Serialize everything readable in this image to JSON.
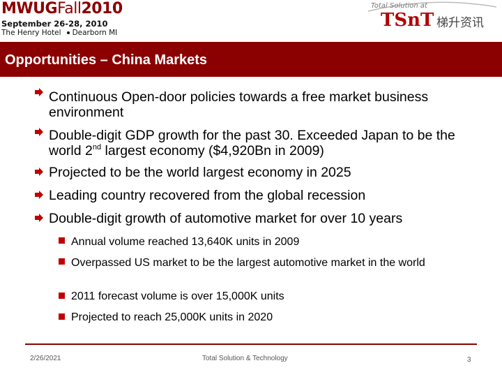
{
  "header": {
    "logo_bold": "MWUG",
    "logo_light": "Fall",
    "logo_year": "2010",
    "dates": "September 26-28, 2010",
    "venue_hotel": "The Henry Hotel",
    "venue_city": "Dearborn  MI",
    "brand_tagline": "Total Solution at",
    "brand_name": "TSnT",
    "brand_cn": "梯升资讯"
  },
  "slide": {
    "title": "Opportunities – China Markets",
    "bullets": [
      {
        "text": "Continuous Open-door policies towards a free market business environment"
      },
      {
        "text_pre": "Double-digit GDP growth for the past 30. Exceeded Japan to be the world 2",
        "sup": "nd",
        "text_post": " largest economy ($4,920Bn in 2009)"
      },
      {
        "text": "Projected to be the world largest  economy in 2025"
      },
      {
        "text": "Leading country recovered from the global recession"
      },
      {
        "text": "Double-digit growth of automotive market for over 10 years"
      }
    ],
    "sub_bullets": [
      {
        "text": "Annual volume reached 13,640K units in 2009"
      },
      {
        "text": "Overpassed US market to be the largest automotive market in the world"
      },
      {
        "text": "2011 forecast volume is over 15,000K units"
      },
      {
        "text": "Projected to reach 25,000K units in 2020"
      }
    ]
  },
  "footer": {
    "date": "2/26/2021",
    "center": "Total Solution & Technology",
    "page": "3"
  },
  "colors": {
    "title_bar": "#8b0000",
    "bullet_arrow": "#c00000",
    "brand_red": "#b30000"
  }
}
